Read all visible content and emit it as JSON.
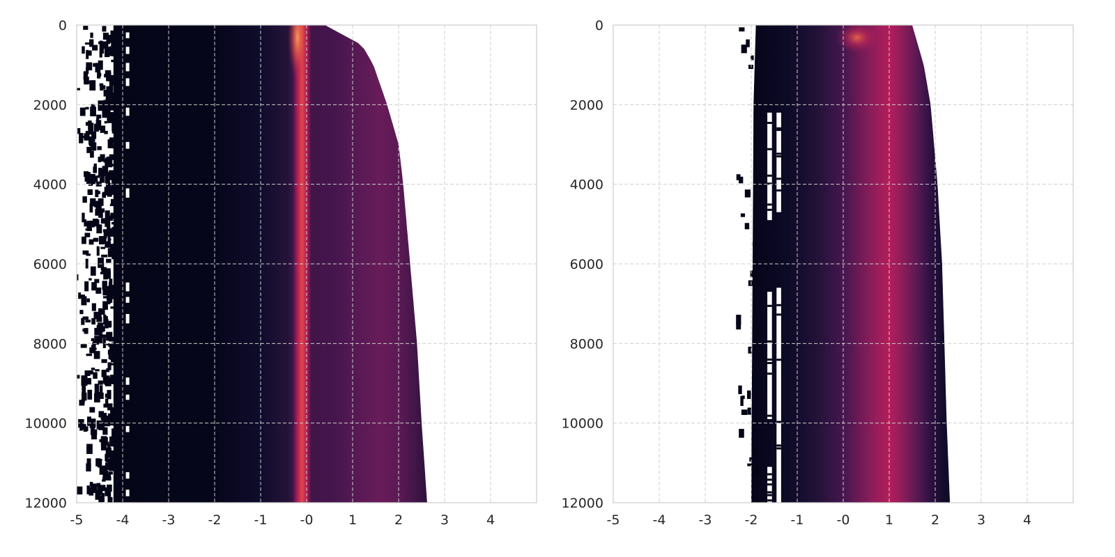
{
  "chart_data": [
    {
      "type": "heatmap",
      "title": "",
      "xlabel": "",
      "ylabel": "",
      "xlim": [
        -5,
        5
      ],
      "ylim": [
        12000,
        0
      ],
      "x_ticks": [
        "-5",
        "-4",
        "-3",
        "-2",
        "-1",
        "-0",
        "1",
        "2",
        "3",
        "4"
      ],
      "y_ticks": [
        "0",
        "2000",
        "4000",
        "6000",
        "8000",
        "10000",
        "12000"
      ],
      "grid": true,
      "colormap": "rocket",
      "density_peak_x": [
        {
          "y": 0,
          "x": -0.2
        },
        {
          "y": 12000,
          "x": -0.2
        }
      ],
      "secondary_band_x": [
        {
          "y": 3000,
          "x": 1.0
        },
        {
          "y": 12000,
          "x": 1.5
        }
      ],
      "right_edge": [
        {
          "y": 0,
          "x": 0.4
        },
        {
          "y": 500,
          "x": 1.2
        },
        {
          "y": 1000,
          "x": 1.45
        },
        {
          "y": 2000,
          "x": 1.75
        },
        {
          "y": 3000,
          "x": 2.0
        },
        {
          "y": 4000,
          "x": 2.1
        },
        {
          "y": 6000,
          "x": 2.25
        },
        {
          "y": 8000,
          "x": 2.4
        },
        {
          "y": 10000,
          "x": 2.5
        },
        {
          "y": 12000,
          "x": 2.62
        }
      ],
      "left_edge": [
        {
          "y": 0,
          "x": -4.2
        },
        {
          "y": 12000,
          "x": -4.2
        }
      ],
      "scatter_region_x": [
        -5,
        -4.2
      ],
      "white_gaps_x": [
        -3.9
      ]
    },
    {
      "type": "heatmap",
      "title": "",
      "xlabel": "",
      "ylabel": "",
      "xlim": [
        -5,
        5
      ],
      "ylim": [
        12000,
        0
      ],
      "x_ticks": [
        "-5",
        "-4",
        "-3",
        "-2",
        "-1",
        "-0",
        "1",
        "2",
        "3",
        "4"
      ],
      "y_ticks": [
        "0",
        "2000",
        "4000",
        "6000",
        "8000",
        "10000",
        "12000"
      ],
      "grid": true,
      "colormap": "rocket",
      "density_peak_x": [
        {
          "y": 0,
          "x": 0.3
        },
        {
          "y": 2000,
          "x": 0.8
        },
        {
          "y": 12000,
          "x": 1.0
        }
      ],
      "right_edge": [
        {
          "y": 0,
          "x": 1.5
        },
        {
          "y": 1000,
          "x": 1.75
        },
        {
          "y": 2000,
          "x": 1.9
        },
        {
          "y": 4000,
          "x": 2.05
        },
        {
          "y": 6000,
          "x": 2.15
        },
        {
          "y": 8000,
          "x": 2.2
        },
        {
          "y": 10000,
          "x": 2.25
        },
        {
          "y": 12000,
          "x": 2.32
        }
      ],
      "left_edge": [
        {
          "y": 0,
          "x": -1.9
        },
        {
          "y": 2000,
          "x": -1.95
        },
        {
          "y": 12000,
          "x": -2.0
        }
      ],
      "white_gaps": [
        {
          "x": [
            -1.65,
            -1.55
          ],
          "y": [
            2200,
            4900
          ]
        },
        {
          "x": [
            -1.45,
            -1.35
          ],
          "y": [
            2200,
            4700
          ]
        },
        {
          "x": [
            -1.65,
            -1.55
          ],
          "y": [
            6700,
            9900
          ]
        },
        {
          "x": [
            -1.45,
            -1.35
          ],
          "y": [
            6600,
            12000
          ]
        },
        {
          "x": [
            -1.65,
            -1.55
          ],
          "y": [
            11100,
            12000
          ]
        }
      ],
      "scatter_region_x": [
        -2.3,
        -1.9
      ]
    }
  ]
}
